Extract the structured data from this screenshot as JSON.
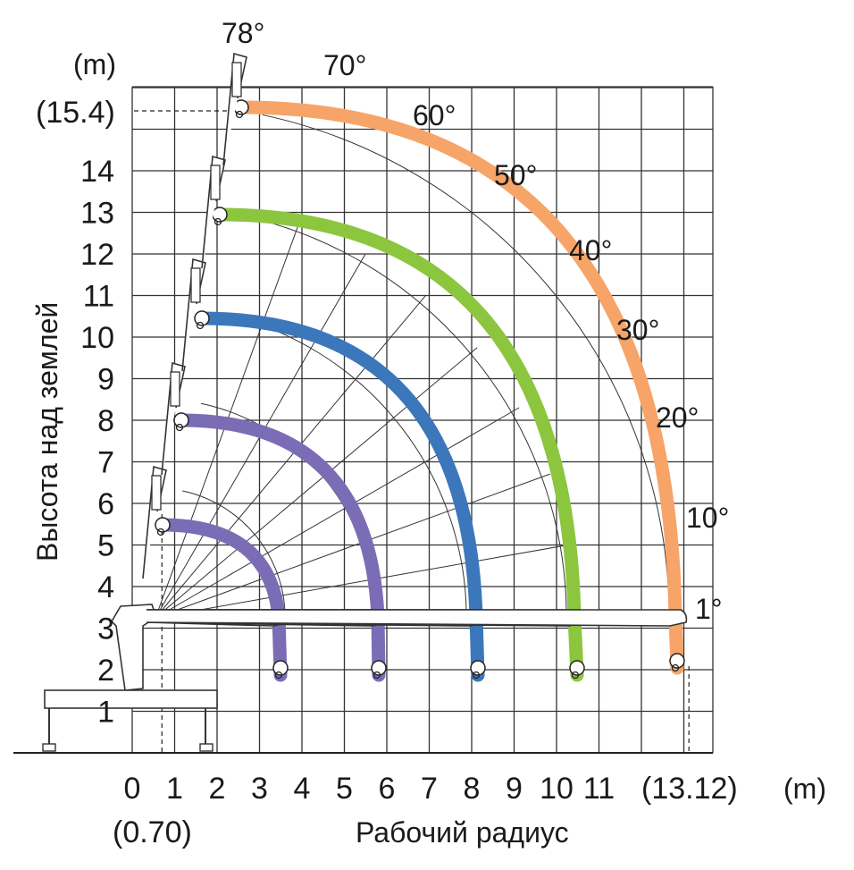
{
  "chart_data": {
    "type": "line",
    "xlabel": "Рабочий радиус",
    "ylabel": "Высота над землей",
    "x_unit": "(m)",
    "y_unit": "(m)",
    "x_ticks": [
      "0",
      "1",
      "2",
      "3",
      "4",
      "5",
      "6",
      "7",
      "8",
      "9",
      "10",
      "11"
    ],
    "x_max_label": "(13.12)",
    "x_min_note": "(0.70)",
    "y_ticks": [
      "1",
      "2",
      "3",
      "4",
      "5",
      "6",
      "7",
      "8",
      "9",
      "10",
      "11",
      "12",
      "13",
      "14"
    ],
    "y_max_label": "(15.4)",
    "xlim": [
      0,
      13.8
    ],
    "ylim": [
      0,
      15.9
    ],
    "grid": true,
    "pivot": {
      "x": 0.55,
      "y": 3.25
    },
    "angle_labels": [
      "78°",
      "70°",
      "60°",
      "50°",
      "40°",
      "30°",
      "20°",
      "10°",
      "1°"
    ],
    "angles": [
      78,
      70,
      60,
      50,
      40,
      30,
      20,
      10,
      1
    ],
    "series": [
      {
        "color": "#7B6DB5",
        "reach": 3.5,
        "min_radius": 0.7,
        "max_height": 5.4,
        "low_hook_height": 1.9
      },
      {
        "color": "#7B6DB5",
        "reach": 5.8,
        "min_radius": 1.15,
        "max_height": 8.0,
        "low_hook_height": 1.9
      },
      {
        "color": "#3C77BC",
        "reach": 8.1,
        "min_radius": 1.65,
        "max_height": 10.5,
        "low_hook_height": 1.9
      },
      {
        "color": "#8CC63F",
        "reach": 10.4,
        "min_radius": 2.1,
        "max_height": 12.9,
        "low_hook_height": 1.9
      },
      {
        "color": "#F7A468",
        "reach": 12.8,
        "min_radius": 2.6,
        "max_height": 15.4,
        "low_hook_height": 1.9
      }
    ]
  }
}
